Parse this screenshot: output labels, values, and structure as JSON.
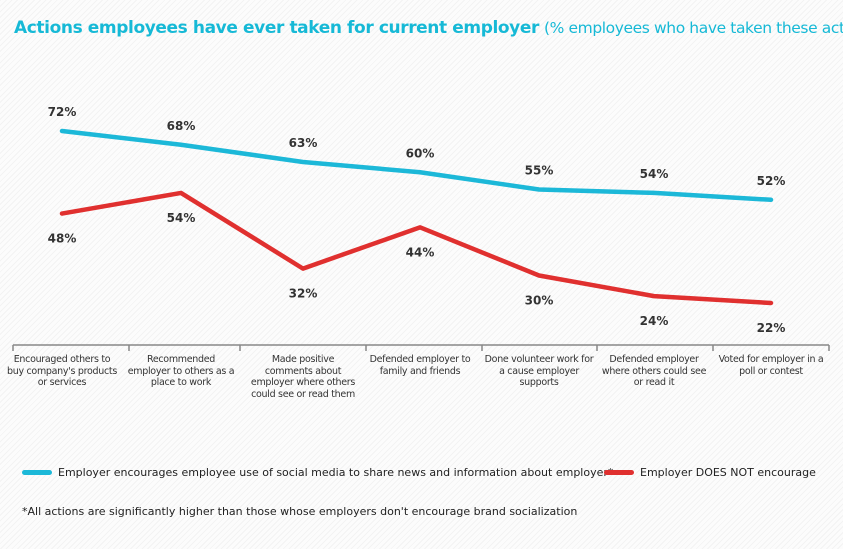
{
  "chart_data": {
    "type": "line",
    "title": "Actions employees have ever taken for current employer",
    "subtitle": "(% employees who have taken these actions)",
    "categories": [
      "Encouraged others to buy company's products or services",
      "Recommended employer to others as a place to work",
      "Made positive comments about employer where others could see or read them",
      "Defended employer to family and friends",
      "Done volunteer work for a cause employer supports",
      "Defended employer where others could see or read it",
      "Voted for employer in a poll or contest"
    ],
    "series": [
      {
        "name": "Employer encourages employee use of social media to share news and information about employer*",
        "color": "#1cb8d8",
        "values": [
          72,
          68,
          63,
          60,
          55,
          54,
          52
        ],
        "labels": [
          "72%",
          "68%",
          "63%",
          "60%",
          "55%",
          "54%",
          "52%"
        ]
      },
      {
        "name": "Employer DOES NOT encourage",
        "color": "#e0302f",
        "values": [
          48,
          54,
          32,
          44,
          30,
          24,
          22
        ],
        "labels": [
          "48%",
          "54%",
          "32%",
          "44%",
          "30%",
          "24%",
          "22%"
        ]
      }
    ],
    "grid": false,
    "legend": "bottom",
    "footnote": "*All actions are significantly higher than those whose employers don't encourage brand socialization"
  }
}
